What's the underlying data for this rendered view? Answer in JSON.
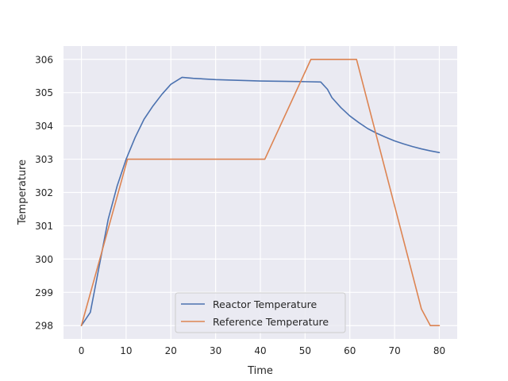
{
  "chart_data": {
    "type": "line",
    "title": "",
    "xlabel": "Time",
    "ylabel": "Temperature",
    "xlim": [
      -4,
      84
    ],
    "ylim": [
      297.6,
      306.4
    ],
    "xticks": [
      0,
      10,
      20,
      30,
      40,
      50,
      60,
      70,
      80
    ],
    "yticks": [
      298,
      299,
      300,
      301,
      302,
      303,
      304,
      305,
      306
    ],
    "grid": true,
    "legend_position": "bottom-center",
    "series": [
      {
        "name": "Reactor Temperature",
        "color": "#4c72b0",
        "points": [
          [
            0,
            298.0
          ],
          [
            2,
            298.4
          ],
          [
            4,
            299.8
          ],
          [
            6,
            301.2
          ],
          [
            8,
            302.2
          ],
          [
            10,
            303.0
          ],
          [
            12,
            303.65
          ],
          [
            14,
            304.2
          ],
          [
            16,
            304.6
          ],
          [
            18,
            304.95
          ],
          [
            20,
            305.25
          ],
          [
            22.5,
            305.46
          ],
          [
            25,
            305.43
          ],
          [
            30,
            305.39
          ],
          [
            35,
            305.37
          ],
          [
            40,
            305.35
          ],
          [
            45,
            305.34
          ],
          [
            50,
            305.33
          ],
          [
            53.5,
            305.32
          ],
          [
            55,
            305.1
          ],
          [
            56,
            304.85
          ],
          [
            58,
            304.55
          ],
          [
            60,
            304.3
          ],
          [
            62,
            304.1
          ],
          [
            64,
            303.92
          ],
          [
            66,
            303.78
          ],
          [
            68,
            303.66
          ],
          [
            70,
            303.55
          ],
          [
            72,
            303.46
          ],
          [
            74,
            303.38
          ],
          [
            76,
            303.31
          ],
          [
            78,
            303.25
          ],
          [
            80,
            303.2
          ]
        ]
      },
      {
        "name": "Reference Temperature",
        "color": "#dd8452",
        "points": [
          [
            0,
            298.0
          ],
          [
            10.3,
            303.0
          ],
          [
            41,
            303.0
          ],
          [
            51.3,
            306.0
          ],
          [
            61.5,
            306.0
          ],
          [
            76,
            298.5
          ],
          [
            78,
            298.0
          ],
          [
            80,
            298.0
          ]
        ]
      }
    ]
  }
}
